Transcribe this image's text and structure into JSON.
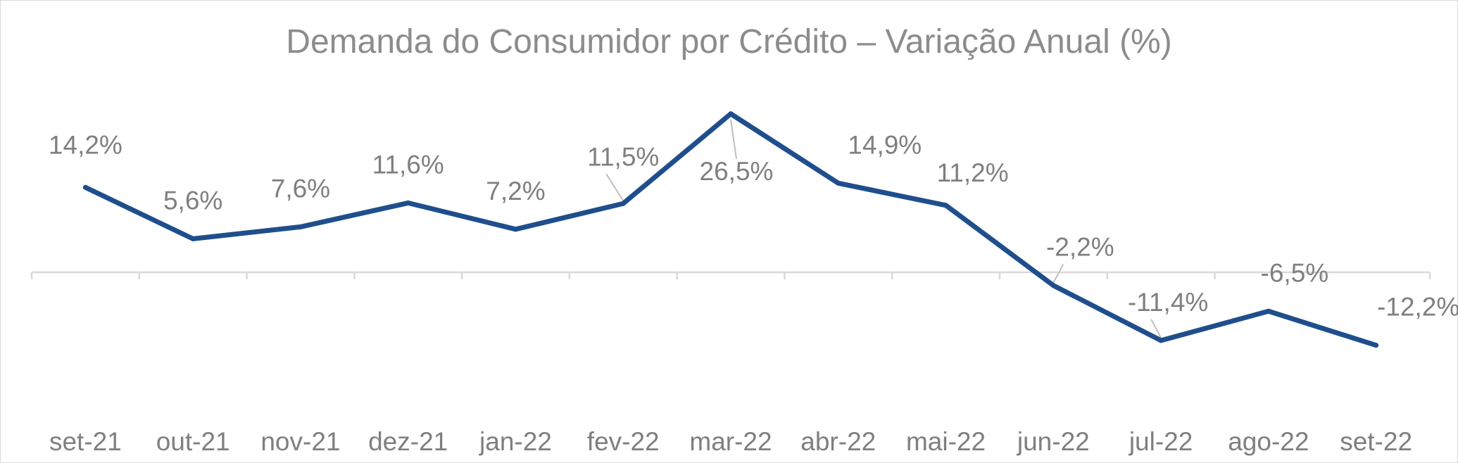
{
  "chart_data": {
    "type": "line",
    "title": "Demanda do Consumidor por Crédito – Variação Anual (%)",
    "xlabel": "",
    "ylabel": "",
    "categories": [
      "set-21",
      "out-21",
      "nov-21",
      "dez-21",
      "jan-22",
      "fev-22",
      "mar-22",
      "abr-22",
      "mai-22",
      "jun-22",
      "jul-22",
      "ago-22",
      "set-22"
    ],
    "series": [
      {
        "values": [
          14.2,
          5.6,
          7.6,
          11.6,
          7.2,
          11.5,
          26.5,
          14.9,
          11.2,
          -2.2,
          -11.4,
          -6.5,
          -12.2
        ],
        "data_labels": [
          "14,2%",
          "5,6%",
          "7,6%",
          "11,6%",
          "7,2%",
          "11,5%",
          "26,5%",
          "14,9%",
          "11,2%",
          "-2,2%",
          "-11,4%",
          "-6,5%",
          "-12,2%"
        ],
        "color": "#1f4e8c"
      }
    ],
    "ylim": [
      -25,
      33
    ],
    "grid": false,
    "legend": "none",
    "axis_color": "#d9d9d9",
    "label_color": "#7f7f7f",
    "title_color": "#8c8c8c"
  }
}
